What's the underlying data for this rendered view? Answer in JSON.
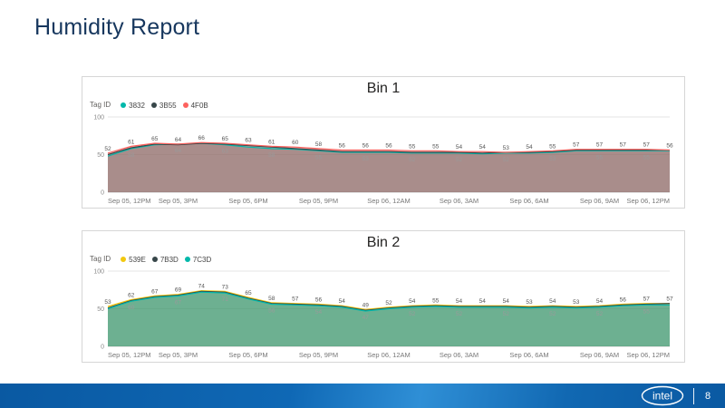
{
  "title": "Humidity Report",
  "footer": {
    "logo_text": "intel",
    "page_number": "8"
  },
  "chart_data": [
    {
      "type": "area",
      "title": "Bin 1",
      "legend_title": "Tag ID",
      "legend_position": "top-left",
      "grid": true,
      "ylim": [
        0,
        100
      ],
      "yticks": [
        0,
        50,
        100
      ],
      "x_ticks": [
        "Sep 05, 12PM",
        "Sep 05, 3PM",
        "Sep 05, 6PM",
        "Sep 05, 9PM",
        "Sep 06, 12AM",
        "Sep 06, 3AM",
        "Sep 06, 6AM",
        "Sep 06, 9AM",
        "Sep 06, 12PM"
      ],
      "label_top_series": 2,
      "label_bottom_series": 0,
      "series": [
        {
          "name": "3832",
          "color": "#01B8AA",
          "values": [
            48,
            58,
            63,
            64,
            65,
            63,
            60,
            58,
            57,
            55,
            53,
            53,
            53,
            52,
            52,
            52,
            51,
            52,
            52,
            53,
            55,
            55,
            55,
            55,
            55
          ]
        },
        {
          "name": "3B55",
          "color": "#374649",
          "values": [
            50,
            59,
            64,
            63,
            65,
            64,
            62,
            60,
            58,
            56,
            54,
            54,
            54,
            53,
            53,
            53,
            52,
            53,
            53,
            54,
            56,
            56,
            56,
            56,
            56
          ]
        },
        {
          "name": "4F0B",
          "color": "#FD625E",
          "values": [
            52,
            61,
            65,
            64,
            66,
            65,
            63,
            61,
            60,
            58,
            56,
            56,
            56,
            55,
            55,
            54,
            54,
            53,
            54,
            55,
            57,
            57,
            57,
            57,
            56
          ]
        }
      ]
    },
    {
      "type": "area",
      "title": "Bin 2",
      "legend_title": "Tag ID",
      "legend_position": "top-left",
      "grid": true,
      "ylim": [
        0,
        100
      ],
      "yticks": [
        0,
        50,
        100
      ],
      "x_ticks": [
        "Sep 05, 12PM",
        "Sep 05, 3PM",
        "Sep 05, 6PM",
        "Sep 05, 9PM",
        "Sep 06, 12AM",
        "Sep 06, 3AM",
        "Sep 06, 6AM",
        "Sep 06, 9AM",
        "Sep 06, 12PM"
      ],
      "label_top_series": 0,
      "label_bottom_series": 2,
      "series": [
        {
          "name": "539E",
          "color": "#F2C80F",
          "values": [
            53,
            62,
            67,
            69,
            74,
            73,
            65,
            58,
            57,
            56,
            54,
            49,
            52,
            54,
            55,
            54,
            54,
            54,
            53,
            54,
            53,
            54,
            56,
            57,
            57
          ]
        },
        {
          "name": "7B3D",
          "color": "#374649",
          "values": [
            51,
            61,
            66,
            68,
            73,
            72,
            64,
            57,
            56,
            55,
            53,
            48,
            51,
            53,
            54,
            53,
            53,
            53,
            52,
            53,
            52,
            53,
            55,
            56,
            57
          ]
        },
        {
          "name": "7C3D",
          "color": "#01B8AA",
          "values": [
            50,
            60,
            65,
            67,
            72,
            71,
            63,
            56,
            55,
            54,
            52,
            47,
            50,
            52,
            53,
            52,
            52,
            52,
            51,
            52,
            51,
            52,
            54,
            55,
            55
          ]
        }
      ]
    }
  ]
}
